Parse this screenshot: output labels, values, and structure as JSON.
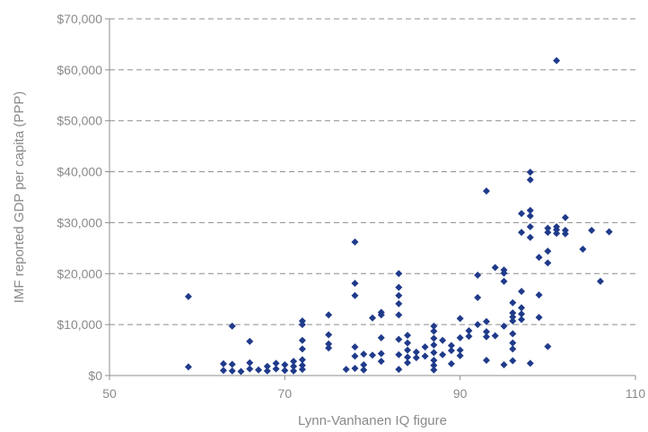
{
  "chart_data": {
    "type": "scatter",
    "title": "",
    "xlabel": "Lynn-Vanhanen IQ figure",
    "ylabel": "IMF reported GDP per capita (PPP)",
    "xlim": [
      50,
      110
    ],
    "ylim": [
      0,
      70000
    ],
    "x_ticks": [
      50,
      70,
      90,
      110
    ],
    "x_tick_labels": [
      "50",
      "70",
      "90",
      "110"
    ],
    "y_ticks": [
      0,
      10000,
      20000,
      30000,
      40000,
      50000,
      60000,
      70000
    ],
    "y_tick_labels": [
      "$0",
      "$10,000",
      "$20,000",
      "$30,000",
      "$40,000",
      "$50,000",
      "$60,000",
      "$70,000"
    ],
    "grid": "horizontal dashed",
    "marker_color": "#1f3a8a",
    "points": [
      [
        59,
        15500
      ],
      [
        59,
        1700
      ],
      [
        63,
        2300
      ],
      [
        63,
        1000
      ],
      [
        64,
        9700
      ],
      [
        64,
        2200
      ],
      [
        64,
        900
      ],
      [
        65,
        800
      ],
      [
        66,
        6700
      ],
      [
        66,
        2500
      ],
      [
        66,
        1300
      ],
      [
        67,
        1100
      ],
      [
        68,
        1800
      ],
      [
        68,
        900
      ],
      [
        69,
        2400
      ],
      [
        69,
        1300
      ],
      [
        70,
        2100
      ],
      [
        70,
        1000
      ],
      [
        71,
        2800
      ],
      [
        71,
        1800
      ],
      [
        71,
        900
      ],
      [
        72,
        10700
      ],
      [
        72,
        10000
      ],
      [
        72,
        6900
      ],
      [
        72,
        5200
      ],
      [
        72,
        3100
      ],
      [
        72,
        2000
      ],
      [
        72,
        1200
      ],
      [
        75,
        11900
      ],
      [
        75,
        8000
      ],
      [
        75,
        6200
      ],
      [
        75,
        5400
      ],
      [
        77,
        1200
      ],
      [
        78,
        26200
      ],
      [
        78,
        18100
      ],
      [
        78,
        15700
      ],
      [
        78,
        5600
      ],
      [
        78,
        3800
      ],
      [
        78,
        1400
      ],
      [
        79,
        4200
      ],
      [
        79,
        2100
      ],
      [
        79,
        1100
      ],
      [
        80,
        11300
      ],
      [
        80,
        4000
      ],
      [
        81,
        12400
      ],
      [
        81,
        11900
      ],
      [
        81,
        7400
      ],
      [
        81,
        4300
      ],
      [
        81,
        2800
      ],
      [
        83,
        20000
      ],
      [
        83,
        17300
      ],
      [
        83,
        15700
      ],
      [
        83,
        14100
      ],
      [
        83,
        11900
      ],
      [
        83,
        7100
      ],
      [
        83,
        4100
      ],
      [
        83,
        1200
      ],
      [
        84,
        7900
      ],
      [
        84,
        6400
      ],
      [
        84,
        5000
      ],
      [
        84,
        3600
      ],
      [
        84,
        2500
      ],
      [
        85,
        4600
      ],
      [
        85,
        3500
      ],
      [
        86,
        5600
      ],
      [
        86,
        3800
      ],
      [
        87,
        9700
      ],
      [
        87,
        8700
      ],
      [
        87,
        7300
      ],
      [
        87,
        6000
      ],
      [
        87,
        4500
      ],
      [
        87,
        3000
      ],
      [
        87,
        2000
      ],
      [
        87,
        1100
      ],
      [
        88,
        6900
      ],
      [
        88,
        4100
      ],
      [
        89,
        5900
      ],
      [
        89,
        4900
      ],
      [
        89,
        2300
      ],
      [
        90,
        11200
      ],
      [
        90,
        7400
      ],
      [
        90,
        5000
      ],
      [
        90,
        3900
      ],
      [
        91,
        8800
      ],
      [
        91,
        7700
      ],
      [
        92,
        19700
      ],
      [
        92,
        15300
      ],
      [
        92,
        10000
      ],
      [
        93,
        36200
      ],
      [
        93,
        10600
      ],
      [
        93,
        8600
      ],
      [
        93,
        7600
      ],
      [
        93,
        3000
      ],
      [
        94,
        21200
      ],
      [
        94,
        7800
      ],
      [
        95,
        20700
      ],
      [
        95,
        20100
      ],
      [
        95,
        18500
      ],
      [
        95,
        9700
      ],
      [
        95,
        2100
      ],
      [
        96,
        14300
      ],
      [
        96,
        12300
      ],
      [
        96,
        11500
      ],
      [
        96,
        10700
      ],
      [
        96,
        8200
      ],
      [
        96,
        6400
      ],
      [
        96,
        5200
      ],
      [
        96,
        2900
      ],
      [
        97,
        31800
      ],
      [
        97,
        28100
      ],
      [
        97,
        16500
      ],
      [
        97,
        13300
      ],
      [
        97,
        12100
      ],
      [
        97,
        11000
      ],
      [
        98,
        39900
      ],
      [
        98,
        38400
      ],
      [
        98,
        32400
      ],
      [
        98,
        31300
      ],
      [
        98,
        29200
      ],
      [
        98,
        27100
      ],
      [
        98,
        2400
      ],
      [
        99,
        23200
      ],
      [
        99,
        15800
      ],
      [
        99,
        11400
      ],
      [
        100,
        28900
      ],
      [
        100,
        28100
      ],
      [
        100,
        24400
      ],
      [
        100,
        22100
      ],
      [
        100,
        5700
      ],
      [
        101,
        61800
      ],
      [
        101,
        29200
      ],
      [
        101,
        28600
      ],
      [
        101,
        27900
      ],
      [
        102,
        31000
      ],
      [
        102,
        28500
      ],
      [
        102,
        27800
      ],
      [
        104,
        24800
      ],
      [
        105,
        28500
      ],
      [
        106,
        18500
      ],
      [
        107,
        28200
      ]
    ]
  }
}
